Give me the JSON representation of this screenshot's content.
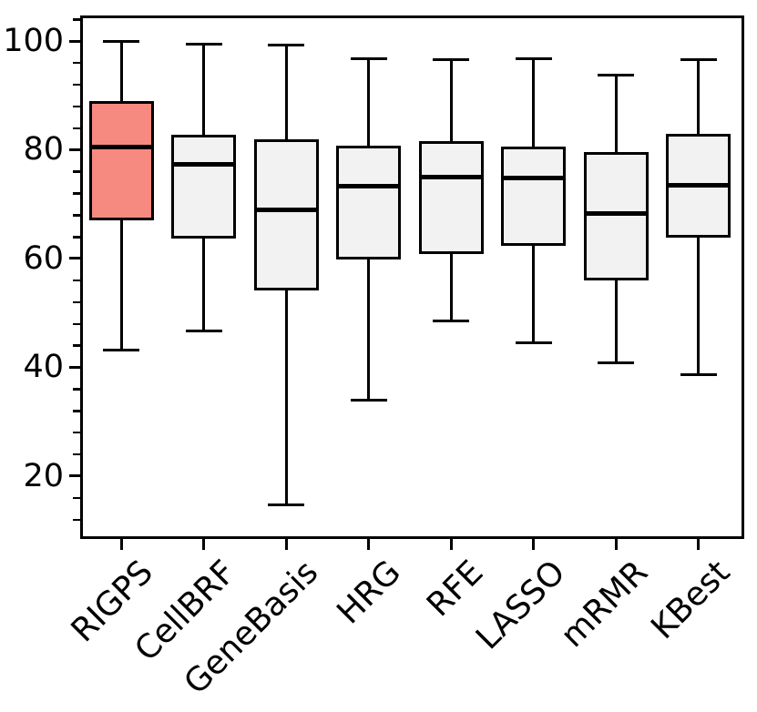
{
  "chart_data": {
    "type": "boxplot",
    "title": "",
    "xlabel": "",
    "ylabel": "",
    "grid": false,
    "legend": false,
    "ylim": [
      8.4,
      104.7
    ],
    "categories": [
      "RIGPS",
      "CellBRF",
      "GeneBasis",
      "HRG",
      "RFE",
      "LASSO",
      "mRMR",
      "KBest"
    ],
    "yticks": [
      {
        "value": 20,
        "label": "20"
      },
      {
        "value": 40,
        "label": "40"
      },
      {
        "value": 60,
        "label": "60"
      },
      {
        "value": 80,
        "label": "80"
      },
      {
        "value": 100,
        "label": "100"
      }
    ],
    "minor_ticks": [
      12,
      16,
      24,
      28,
      32,
      36,
      44,
      48,
      52,
      56,
      64,
      68,
      72,
      76,
      84,
      88,
      92,
      96,
      104
    ],
    "boxes": [
      {
        "label": "RIGPS",
        "whislo": 43.2,
        "q1": 67.0,
        "med": 80.5,
        "q3": 89.0,
        "whishi": 100.0,
        "highlight": true
      },
      {
        "label": "CellBRF",
        "whislo": 46.7,
        "q1": 63.6,
        "med": 77.3,
        "q3": 82.7,
        "whishi": 99.5,
        "highlight": false
      },
      {
        "label": "GeneBasis",
        "whislo": 14.7,
        "q1": 54.1,
        "med": 69.0,
        "q3": 82.0,
        "whishi": 99.2,
        "highlight": false
      },
      {
        "label": "HRG",
        "whislo": 34.0,
        "q1": 59.8,
        "med": 73.3,
        "q3": 80.7,
        "whishi": 96.8,
        "highlight": false
      },
      {
        "label": "RFE",
        "whislo": 48.5,
        "q1": 60.8,
        "med": 75.0,
        "q3": 81.6,
        "whishi": 96.5,
        "highlight": false
      },
      {
        "label": "LASSO",
        "whislo": 44.5,
        "q1": 62.4,
        "med": 74.8,
        "q3": 80.5,
        "whishi": 96.8,
        "highlight": false
      },
      {
        "label": "mRMR",
        "whislo": 40.8,
        "q1": 56.0,
        "med": 68.3,
        "q3": 79.6,
        "whishi": 93.8,
        "highlight": false
      },
      {
        "label": "KBest",
        "whislo": 38.6,
        "q1": 63.8,
        "med": 73.5,
        "q3": 83.0,
        "whishi": 96.6,
        "highlight": false
      }
    ],
    "colors": {
      "highlight_fill": "#F68A80",
      "box_fill": "#F2F2F2",
      "line": "#000000",
      "background": "#FFFFFF"
    }
  }
}
